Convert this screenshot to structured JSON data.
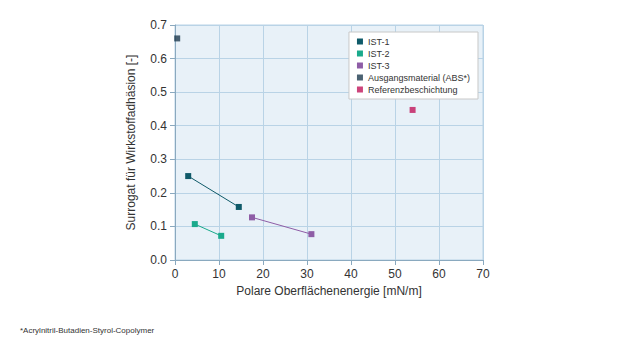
{
  "chart_data": {
    "type": "scatter",
    "x_label": "Polare Oberflächenenergie [mN/m]",
    "y_label": "Surrogat für Wirkstoffadhäsion [-]",
    "annotations": [
      "*Acrylnitril-Butadien-Styrol-Copolymer"
    ],
    "series": [
      {
        "name": "IST-1",
        "type": "line",
        "color": "#0f5a69",
        "marker": "square",
        "line_style": "solid",
        "x": [
          3,
          14.5
        ],
        "values": [
          0.25,
          0.158
        ]
      },
      {
        "name": "IST-2",
        "type": "line",
        "color": "#1aaa8c",
        "marker": "square",
        "line_style": "solid",
        "x": [
          4.5,
          10.5
        ],
        "values": [
          0.107,
          0.072
        ]
      },
      {
        "name": "IST-3",
        "type": "line",
        "color": "#8e5da6",
        "marker": "square",
        "line_style": "solid",
        "x": [
          17.5,
          31
        ],
        "values": [
          0.127,
          0.077
        ]
      },
      {
        "name": "Ausgangsmaterial (ABS*)",
        "color": "#1e3b4f",
        "marker": "square",
        "x": [
          0.5
        ],
        "values": [
          0.66
        ]
      },
      {
        "name": "Referenzbeschichtung",
        "color": "#c0155a",
        "marker": "square",
        "x": [
          54
        ],
        "values": [
          0.447
        ]
      }
    ],
    "xlim": [
      0,
      70
    ],
    "xticks": [
      0,
      10,
      20,
      30,
      40,
      50,
      60,
      70
    ],
    "ylim": [
      0,
      0.7
    ],
    "yticks": [
      {
        "value": 0,
        "label": "0.0"
      },
      0.1,
      0.2,
      0.3,
      0.4,
      0.5,
      0.6,
      0.7
    ],
    "grid": true,
    "legend": "upper right"
  }
}
